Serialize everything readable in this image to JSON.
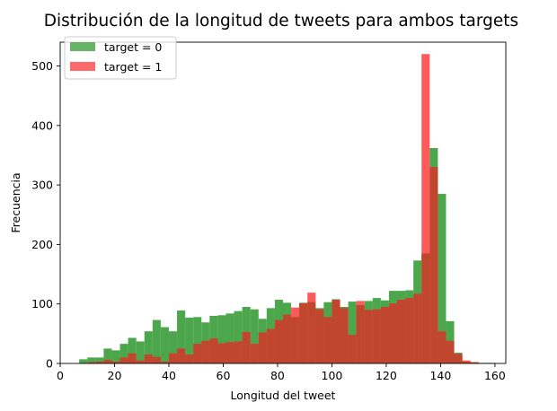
{
  "chart_data": {
    "type": "bar",
    "title": "Distribución de la longitud de tweets para ambos targets",
    "xlabel": "Longitud del tweet",
    "ylabel": "Frecuencia",
    "xlim": [
      0,
      164
    ],
    "ylim": [
      0,
      540
    ],
    "xticks": [
      0,
      20,
      40,
      60,
      80,
      100,
      120,
      140,
      160
    ],
    "yticks": [
      0,
      100,
      200,
      300,
      400,
      500
    ],
    "legend_position": "top-left",
    "colors": {
      "target_0": "#4ca64c",
      "target_1": "#ff5a5a",
      "overlap": "#c0462e"
    },
    "bin_edges": [
      7,
      10,
      13,
      16,
      19,
      22,
      25,
      28,
      31,
      34,
      37,
      40,
      43,
      46,
      49,
      52,
      55,
      58,
      61,
      64,
      67,
      70,
      73,
      76,
      79,
      82,
      85,
      88,
      91,
      94,
      97,
      100,
      103,
      106,
      109,
      112,
      115,
      118,
      121,
      124,
      127,
      130,
      133,
      136,
      139,
      142,
      145,
      148,
      151,
      154,
      157,
      160
    ],
    "series": [
      {
        "name": "target = 0",
        "values": [
          7,
          10,
          10,
          25,
          22,
          33,
          43,
          37,
          54,
          73,
          61,
          54,
          89,
          77,
          78,
          69,
          80,
          81,
          84,
          88,
          95,
          91,
          75,
          93,
          107,
          102,
          78,
          102,
          103,
          93,
          103,
          108,
          95,
          104,
          98,
          105,
          110,
          106,
          122,
          122,
          123,
          173,
          185,
          362,
          285,
          71,
          18,
          3,
          2,
          1,
          1
        ]
      },
      {
        "name": "target = 1",
        "values": [
          0,
          2,
          3,
          6,
          3,
          10,
          17,
          5,
          15,
          11,
          3,
          17,
          25,
          15,
          33,
          38,
          42,
          34,
          36,
          37,
          53,
          33,
          52,
          58,
          73,
          82,
          94,
          101,
          119,
          91,
          78,
          107,
          93,
          48,
          105,
          90,
          91,
          95,
          101,
          107,
          110,
          117,
          520,
          330,
          54,
          38,
          16,
          5,
          2,
          0,
          0
        ]
      }
    ]
  }
}
